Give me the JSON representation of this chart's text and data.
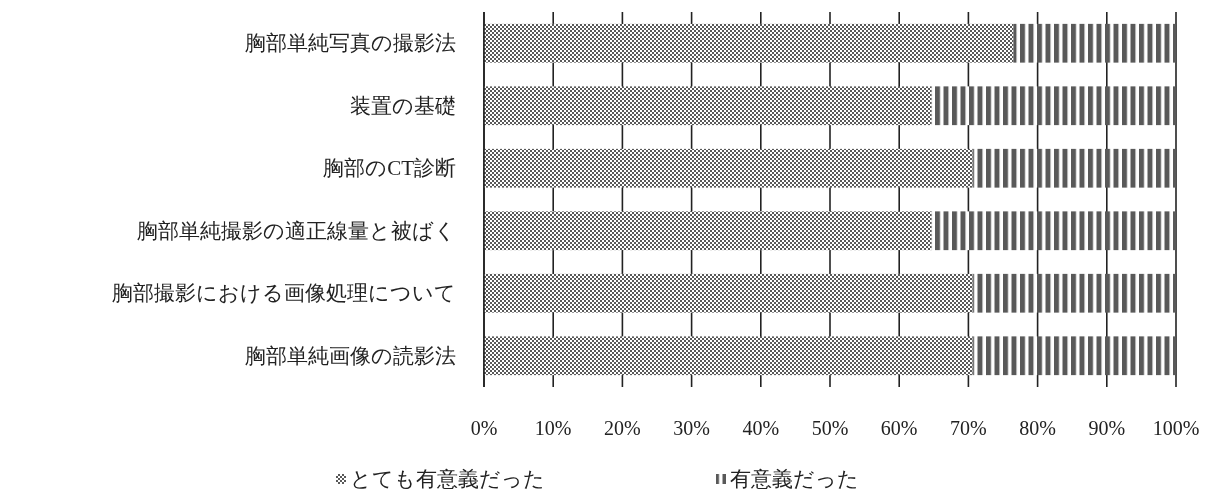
{
  "chart_data": {
    "type": "bar",
    "orientation": "horizontal",
    "stacked": true,
    "categories": [
      "胸部単純写真の撮影法",
      "装置の基礎",
      "胸部のCT診断",
      "胸部単純撮影の適正線量と被ばく",
      "胸部撮影における画像処理について",
      "胸部単純画像の読影法"
    ],
    "series": [
      {
        "name": "とても有意義だった",
        "color": "#595959",
        "values": [
          76.5,
          64.7,
          70.6,
          64.7,
          70.6,
          70.6
        ]
      },
      {
        "name": "有意義だった",
        "color": "#595959",
        "values": [
          23.5,
          35.3,
          29.4,
          35.3,
          29.4,
          29.4
        ]
      }
    ],
    "xlim": [
      0,
      100
    ],
    "xticks": [
      {
        "value": 0,
        "label": "0%"
      },
      {
        "value": 10,
        "label": "10%"
      },
      {
        "value": 20,
        "label": "20%"
      },
      {
        "value": 30,
        "label": "30%"
      },
      {
        "value": 40,
        "label": "40%"
      },
      {
        "value": 50,
        "label": "50%"
      },
      {
        "value": 60,
        "label": "60%"
      },
      {
        "value": 70,
        "label": "70%"
      },
      {
        "value": 80,
        "label": "80%"
      },
      {
        "value": 90,
        "label": "90%"
      },
      {
        "value": 100,
        "label": "100%"
      }
    ],
    "grid": "x",
    "legend": "bottom"
  }
}
